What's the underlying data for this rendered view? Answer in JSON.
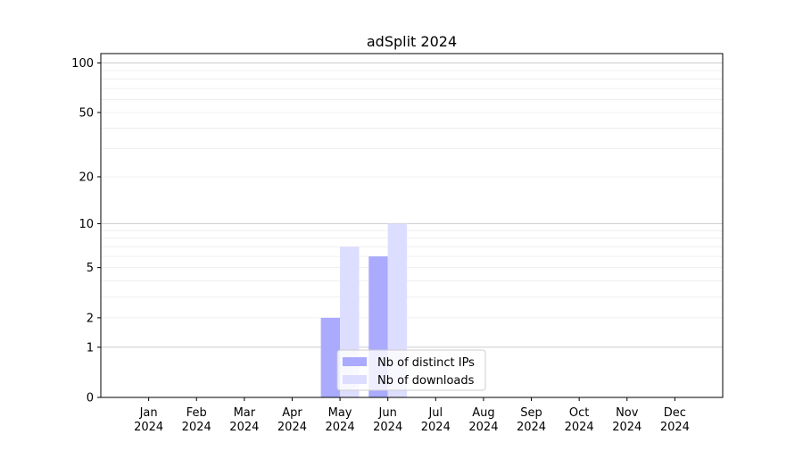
{
  "chart_data": {
    "type": "bar",
    "title": "adSplit 2024",
    "xlabel": "",
    "ylabel": "",
    "yscale": "log(1+y)",
    "ylim": [
      0,
      114
    ],
    "yticks": [
      0,
      1,
      2,
      5,
      10,
      20,
      50,
      100
    ],
    "ytick_labels": [
      "0",
      "1",
      "2",
      "5",
      "10",
      "20",
      "50",
      "100"
    ],
    "categories": [
      "Jan\n2024",
      "Feb\n2024",
      "Mar\n2024",
      "Apr\n2024",
      "May\n2024",
      "Jun\n2024",
      "Jul\n2024",
      "Aug\n2024",
      "Sep\n2024",
      "Oct\n2024",
      "Nov\n2024",
      "Dec\n2024"
    ],
    "series": [
      {
        "name": "Nb of distinct IPs",
        "color": "#aaaaff",
        "values": [
          0,
          0,
          0,
          0,
          2,
          6,
          0,
          0,
          0,
          0,
          0,
          0
        ]
      },
      {
        "name": "Nb of downloads",
        "color": "#ddddff",
        "values": [
          0,
          0,
          0,
          0,
          7,
          10,
          0,
          0,
          0,
          0,
          0,
          0
        ]
      }
    ],
    "grid": true,
    "legend_position": "lower-center"
  }
}
